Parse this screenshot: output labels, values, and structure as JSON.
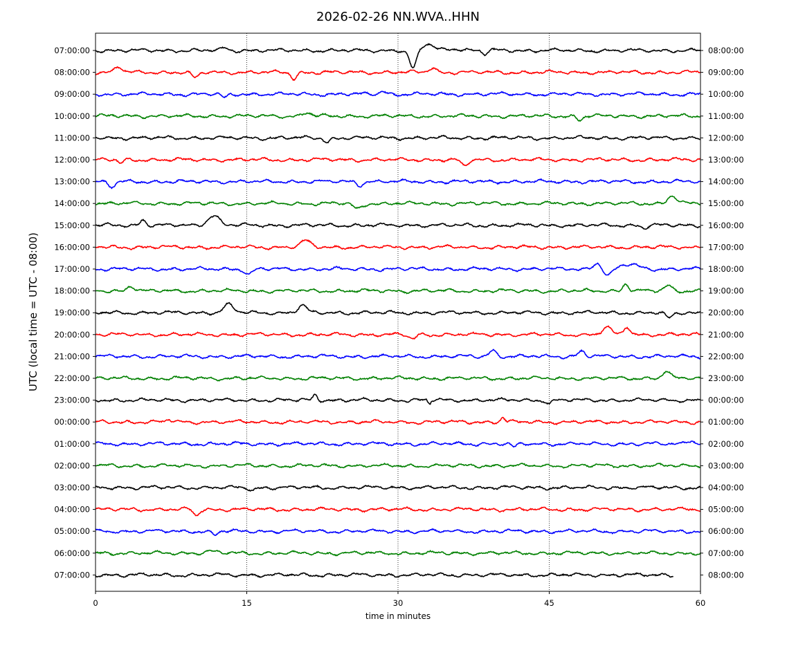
{
  "chart_data": {
    "type": "line",
    "title": "2026-02-26 NN.WVA..HHN",
    "xlabel": "time in minutes",
    "ylabel": "UTC (local time = UTC - 08:00)",
    "xlim": [
      0,
      60
    ],
    "x_ticks": [
      "0",
      "15",
      "30",
      "45",
      "60"
    ],
    "x_tick_values": [
      0,
      15,
      30,
      45,
      60
    ],
    "vertical_gridlines_at": [
      15,
      30,
      45
    ],
    "grid": "vertical dotted lines only",
    "legend": "none",
    "trace_colors": [
      "#000000",
      "#ff0000",
      "#0000ff",
      "#008000"
    ],
    "left_labels": [
      "07:00:00",
      "08:00:00",
      "09:00:00",
      "10:00:00",
      "11:00:00",
      "12:00:00",
      "13:00:00",
      "14:00:00",
      "15:00:00",
      "16:00:00",
      "17:00:00",
      "18:00:00",
      "19:00:00",
      "20:00:00",
      "21:00:00",
      "22:00:00",
      "23:00:00",
      "00:00:00",
      "01:00:00",
      "02:00:00",
      "03:00:00",
      "04:00:00",
      "05:00:00",
      "06:00:00",
      "07:00:00"
    ],
    "right_labels": [
      "08:00:00",
      "09:00:00",
      "10:00:00",
      "11:00:00",
      "12:00:00",
      "13:00:00",
      "14:00:00",
      "15:00:00",
      "16:00:00",
      "17:00:00",
      "18:00:00",
      "19:00:00",
      "20:00:00",
      "21:00:00",
      "22:00:00",
      "23:00:00",
      "00:00:00",
      "01:00:00",
      "02:00:00",
      "03:00:00",
      "04:00:00",
      "05:00:00",
      "06:00:00",
      "07:00:00",
      "08:00:00"
    ],
    "last_trace_end_minute": 57.3,
    "events": [
      {
        "row": 0,
        "minute": 31.5,
        "amplitude": -1.0,
        "width": 0.5
      },
      {
        "row": 0,
        "minute": 33.0,
        "amplitude": 0.35,
        "width": 0.8
      },
      {
        "row": 0,
        "minute": 35.5,
        "amplitude": 0.1,
        "width": 1.2
      },
      {
        "row": 0,
        "minute": 12.8,
        "amplitude": 0.15,
        "width": 0.4
      },
      {
        "row": 0,
        "minute": 38.6,
        "amplitude": -0.2,
        "width": 0.4
      },
      {
        "row": 1,
        "minute": 2.3,
        "amplitude": 0.3,
        "width": 0.5
      },
      {
        "row": 1,
        "minute": 9.9,
        "amplitude": -0.3,
        "width": 0.5
      },
      {
        "row": 1,
        "minute": 19.7,
        "amplitude": -0.35,
        "width": 0.4
      },
      {
        "row": 1,
        "minute": 33.4,
        "amplitude": 0.25,
        "width": 0.5
      },
      {
        "row": 2,
        "minute": 12.8,
        "amplitude": -0.2,
        "width": 0.4
      },
      {
        "row": 2,
        "minute": 28.5,
        "amplitude": 0.2,
        "width": 0.4
      },
      {
        "row": 3,
        "minute": 21.0,
        "amplitude": 0.2,
        "width": 0.5
      },
      {
        "row": 3,
        "minute": 48.0,
        "amplitude": -0.2,
        "width": 0.4
      },
      {
        "row": 4,
        "minute": 23.0,
        "amplitude": -0.25,
        "width": 0.4
      },
      {
        "row": 5,
        "minute": 36.6,
        "amplitude": -0.35,
        "width": 0.5
      },
      {
        "row": 5,
        "minute": 2.5,
        "amplitude": -0.2,
        "width": 0.4
      },
      {
        "row": 6,
        "minute": 1.6,
        "amplitude": -0.3,
        "width": 0.5
      },
      {
        "row": 6,
        "minute": 26.2,
        "amplitude": -0.2,
        "width": 0.4
      },
      {
        "row": 7,
        "minute": 26.0,
        "amplitude": -0.3,
        "width": 0.6
      },
      {
        "row": 7,
        "minute": 57.2,
        "amplitude": 0.45,
        "width": 0.6
      },
      {
        "row": 8,
        "minute": 11.7,
        "amplitude": 0.55,
        "width": 0.8
      },
      {
        "row": 8,
        "minute": 4.7,
        "amplitude": 0.3,
        "width": 0.4
      },
      {
        "row": 8,
        "minute": 54.4,
        "amplitude": -0.15,
        "width": 0.4
      },
      {
        "row": 9,
        "minute": 20.8,
        "amplitude": 0.35,
        "width": 0.7
      },
      {
        "row": 10,
        "minute": 15.2,
        "amplitude": -0.3,
        "width": 0.5
      },
      {
        "row": 10,
        "minute": 49.8,
        "amplitude": 0.35,
        "width": 0.6
      },
      {
        "row": 10,
        "minute": 50.8,
        "amplitude": -0.4,
        "width": 0.6
      },
      {
        "row": 10,
        "minute": 53.0,
        "amplitude": 0.25,
        "width": 1.2
      },
      {
        "row": 11,
        "minute": 3.5,
        "amplitude": 0.3,
        "width": 0.5
      },
      {
        "row": 11,
        "minute": 52.6,
        "amplitude": 0.4,
        "width": 0.4
      },
      {
        "row": 11,
        "minute": 56.8,
        "amplitude": 0.3,
        "width": 0.5
      },
      {
        "row": 12,
        "minute": 13.2,
        "amplitude": 0.45,
        "width": 0.7
      },
      {
        "row": 12,
        "minute": 20.5,
        "amplitude": 0.4,
        "width": 0.6
      },
      {
        "row": 12,
        "minute": 56.9,
        "amplitude": -0.3,
        "width": 0.5
      },
      {
        "row": 13,
        "minute": 50.7,
        "amplitude": 0.4,
        "width": 0.6
      },
      {
        "row": 13,
        "minute": 52.7,
        "amplitude": 0.45,
        "width": 0.4
      },
      {
        "row": 13,
        "minute": 31.4,
        "amplitude": -0.25,
        "width": 0.5
      },
      {
        "row": 14,
        "minute": 39.4,
        "amplitude": 0.35,
        "width": 0.5
      },
      {
        "row": 14,
        "minute": 48.2,
        "amplitude": 0.3,
        "width": 0.5
      },
      {
        "row": 15,
        "minute": 56.6,
        "amplitude": 0.4,
        "width": 0.5
      },
      {
        "row": 16,
        "minute": 33.1,
        "amplitude": -0.5,
        "width": 0.15
      },
      {
        "row": 16,
        "minute": 33.1,
        "amplitude": 0.3,
        "width": 0.12
      },
      {
        "row": 16,
        "minute": 21.8,
        "amplitude": 0.3,
        "width": 0.3
      },
      {
        "row": 16,
        "minute": 45.0,
        "amplitude": -0.2,
        "width": 0.3
      },
      {
        "row": 17,
        "minute": 40.4,
        "amplitude": 0.25,
        "width": 0.3
      },
      {
        "row": 17,
        "minute": 7.3,
        "amplitude": 0.15,
        "width": 0.3
      },
      {
        "row": 18,
        "minute": 59.0,
        "amplitude": 0.2,
        "width": 0.6
      },
      {
        "row": 18,
        "minute": 41.5,
        "amplitude": -0.2,
        "width": 0.4
      },
      {
        "row": 20,
        "minute": 15.6,
        "amplitude": -0.15,
        "width": 0.4
      },
      {
        "row": 21,
        "minute": 10.0,
        "amplitude": -0.35,
        "width": 0.4
      },
      {
        "row": 22,
        "minute": 11.8,
        "amplitude": -0.2,
        "width": 0.4
      },
      {
        "row": 23,
        "minute": 11.4,
        "amplitude": 0.1,
        "width": 0.8
      }
    ]
  }
}
